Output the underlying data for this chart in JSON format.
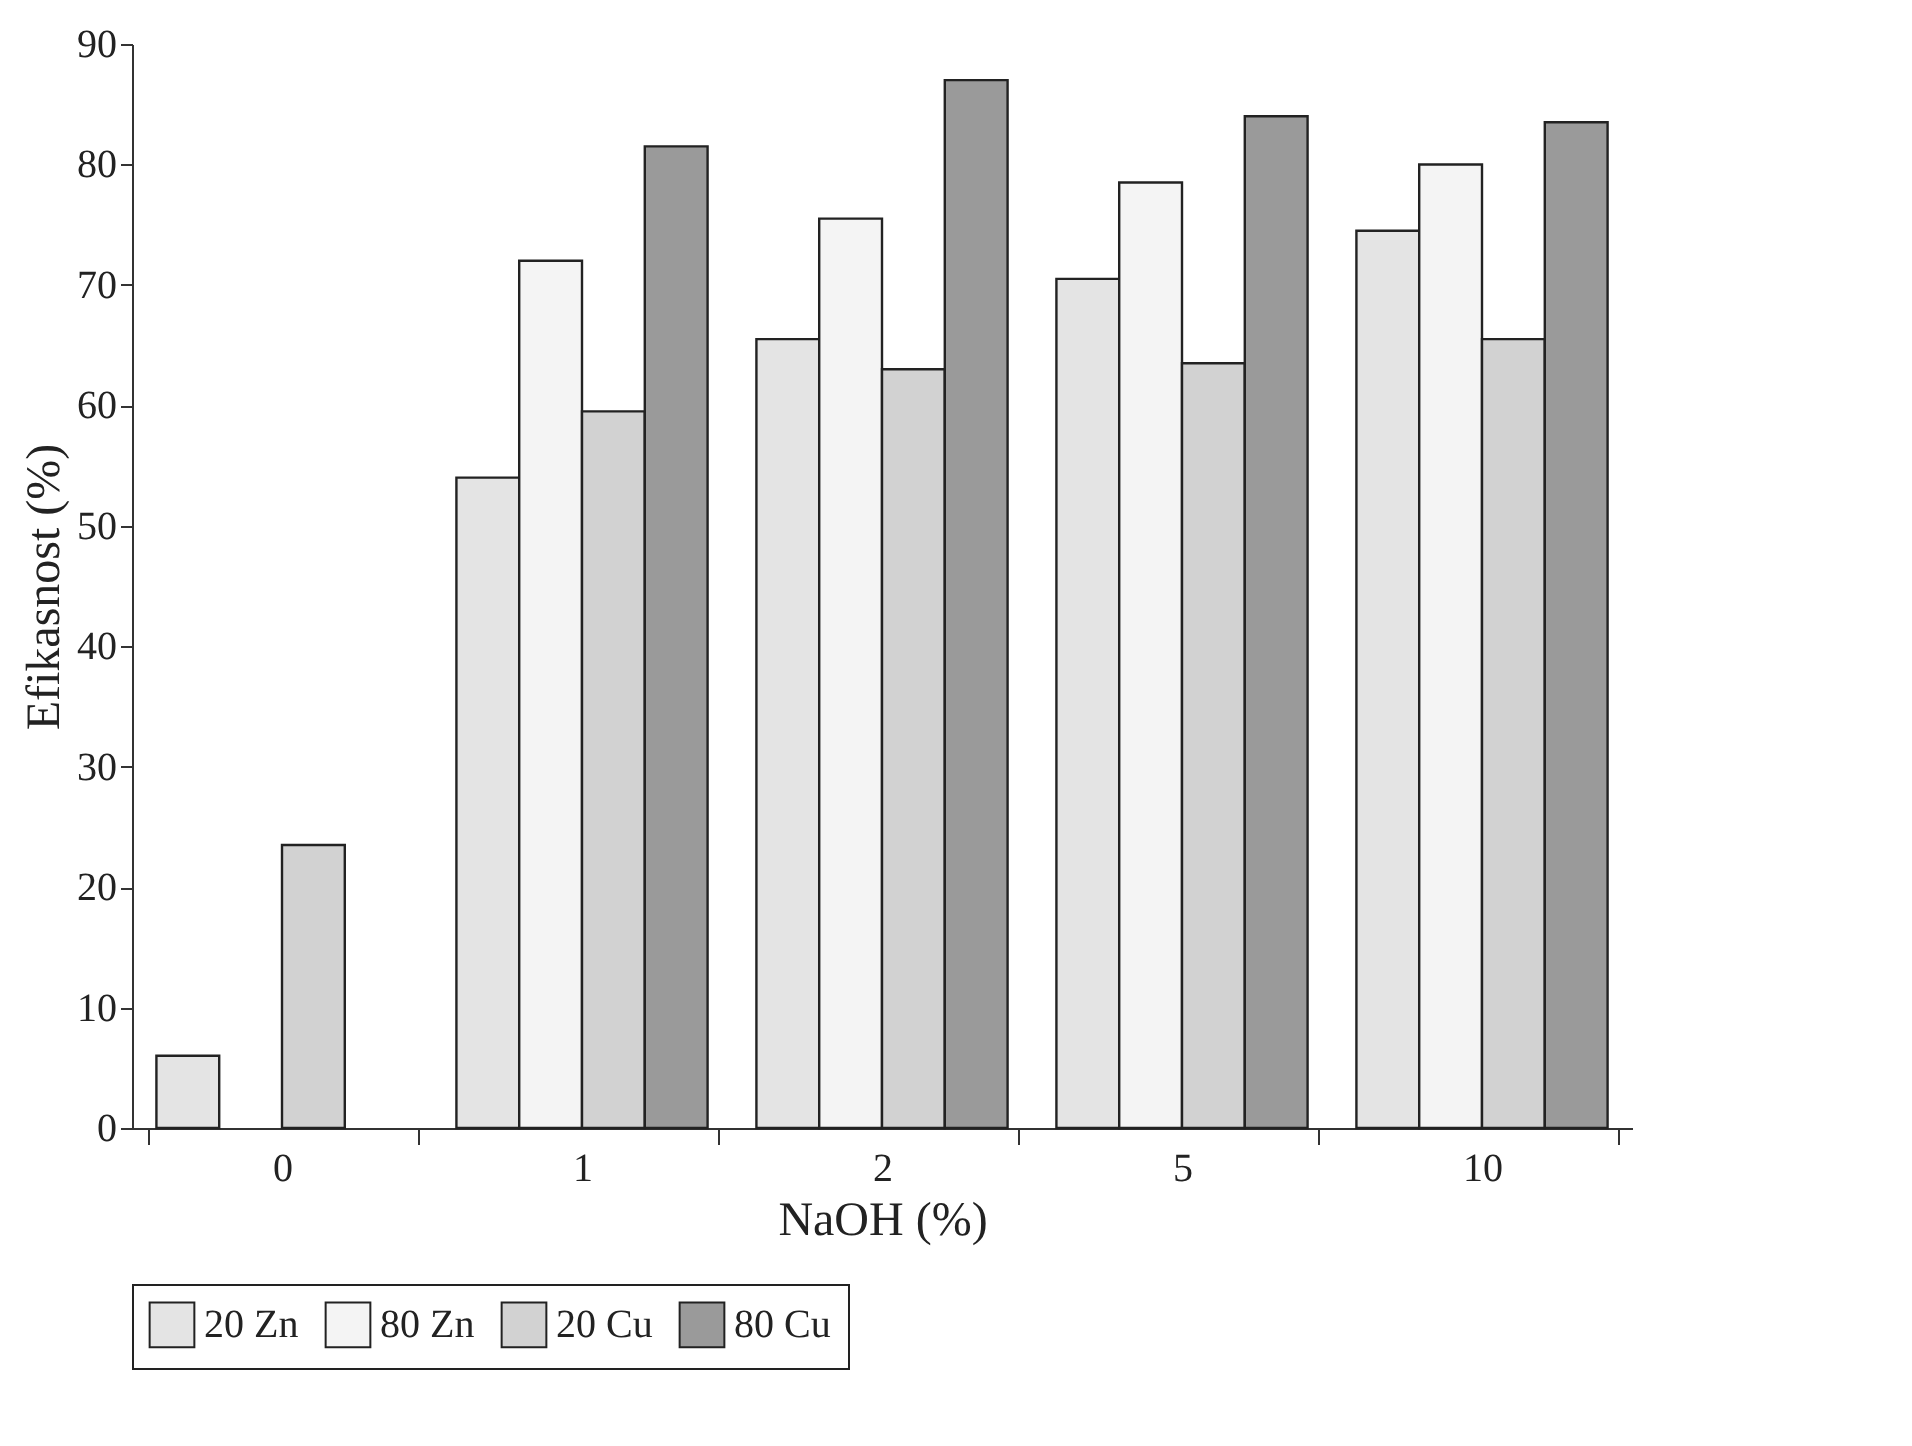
{
  "chart_data": {
    "type": "bar",
    "xlabel": "NaOH (%)",
    "ylabel": "Efikasnost (%)",
    "categories": [
      "0",
      "1",
      "2",
      "5",
      "10"
    ],
    "series": [
      {
        "name": "20 Zn",
        "color": "#e4e4e4",
        "values": [
          6,
          54,
          65.5,
          70.5,
          74.5
        ]
      },
      {
        "name": "80 Zn",
        "color": "#f4f4f4",
        "values": [
          null,
          72,
          75.5,
          78.5,
          80
        ]
      },
      {
        "name": "20 Cu",
        "color": "#d2d2d2",
        "values": [
          23.5,
          59.5,
          63,
          63.5,
          65.5
        ]
      },
      {
        "name": "80 Cu",
        "color": "#9a9a9a",
        "values": [
          null,
          81.5,
          87,
          84,
          83.5
        ]
      }
    ],
    "ylim": [
      0,
      90
    ],
    "yticks": [
      0,
      10,
      20,
      30,
      40,
      50,
      60,
      70,
      80,
      90
    ],
    "grid": false,
    "legend": "bottom"
  }
}
